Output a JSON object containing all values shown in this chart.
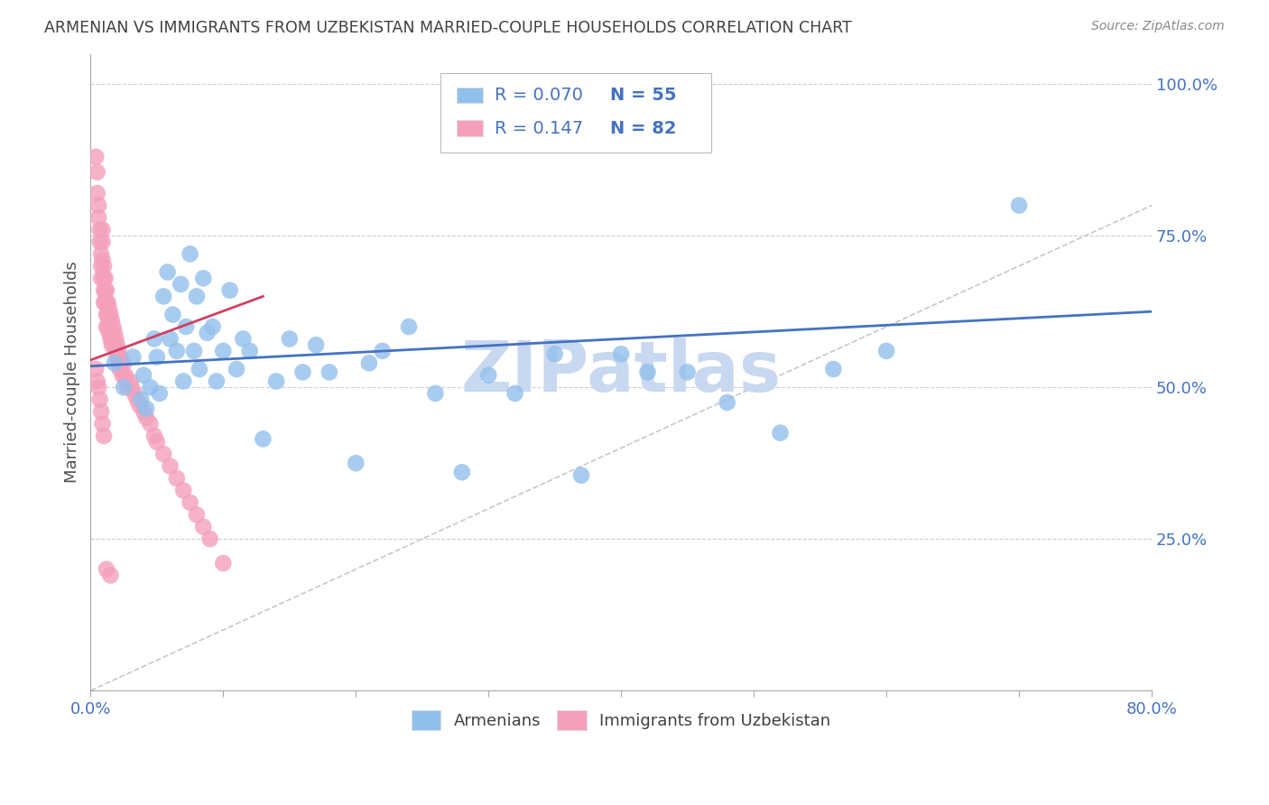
{
  "title": "ARMENIAN VS IMMIGRANTS FROM UZBEKISTAN MARRIED-COUPLE HOUSEHOLDS CORRELATION CHART",
  "source": "Source: ZipAtlas.com",
  "ylabel": "Married-couple Households",
  "xlim": [
    0.0,
    0.8
  ],
  "ylim": [
    0.0,
    1.05
  ],
  "armenian_R": 0.07,
  "armenian_N": 55,
  "uzbekistan_R": 0.147,
  "uzbekistan_N": 82,
  "armenian_color": "#92C0EC",
  "uzbekistan_color": "#F4A0BB",
  "trendline_armenian_color": "#4472C4",
  "trendline_uzbekistan_color": "#D04060",
  "diagonal_color": "#C8C8C8",
  "grid_color": "#CCCCCC",
  "title_color": "#404040",
  "tick_color": "#4472C4",
  "source_color": "#888888",
  "watermark": "ZIPatlas",
  "watermark_color": "#C8D8F0",
  "armenian_x": [
    0.018,
    0.025,
    0.032,
    0.038,
    0.04,
    0.042,
    0.045,
    0.048,
    0.05,
    0.052,
    0.055,
    0.058,
    0.06,
    0.062,
    0.065,
    0.068,
    0.07,
    0.072,
    0.075,
    0.078,
    0.08,
    0.082,
    0.085,
    0.088,
    0.092,
    0.095,
    0.1,
    0.105,
    0.11,
    0.115,
    0.12,
    0.13,
    0.14,
    0.15,
    0.16,
    0.17,
    0.18,
    0.2,
    0.21,
    0.22,
    0.24,
    0.26,
    0.28,
    0.3,
    0.32,
    0.35,
    0.37,
    0.4,
    0.42,
    0.45,
    0.48,
    0.52,
    0.56,
    0.6,
    0.7
  ],
  "armenian_y": [
    0.54,
    0.5,
    0.55,
    0.48,
    0.52,
    0.465,
    0.5,
    0.58,
    0.55,
    0.49,
    0.65,
    0.69,
    0.58,
    0.62,
    0.56,
    0.67,
    0.51,
    0.6,
    0.72,
    0.56,
    0.65,
    0.53,
    0.68,
    0.59,
    0.6,
    0.51,
    0.56,
    0.66,
    0.53,
    0.58,
    0.56,
    0.415,
    0.51,
    0.58,
    0.525,
    0.57,
    0.525,
    0.375,
    0.54,
    0.56,
    0.6,
    0.49,
    0.36,
    0.52,
    0.49,
    0.555,
    0.355,
    0.555,
    0.525,
    0.525,
    0.475,
    0.425,
    0.53,
    0.56,
    0.8
  ],
  "uzbekistan_x": [
    0.004,
    0.005,
    0.005,
    0.006,
    0.006,
    0.007,
    0.007,
    0.008,
    0.008,
    0.008,
    0.009,
    0.009,
    0.009,
    0.01,
    0.01,
    0.01,
    0.01,
    0.011,
    0.011,
    0.011,
    0.012,
    0.012,
    0.012,
    0.012,
    0.013,
    0.013,
    0.013,
    0.014,
    0.014,
    0.014,
    0.015,
    0.015,
    0.015,
    0.016,
    0.016,
    0.016,
    0.017,
    0.017,
    0.018,
    0.018,
    0.019,
    0.019,
    0.02,
    0.02,
    0.021,
    0.021,
    0.022,
    0.022,
    0.023,
    0.024,
    0.025,
    0.026,
    0.027,
    0.028,
    0.03,
    0.031,
    0.033,
    0.035,
    0.037,
    0.04,
    0.042,
    0.045,
    0.048,
    0.05,
    0.055,
    0.06,
    0.065,
    0.07,
    0.075,
    0.08,
    0.085,
    0.09,
    0.1,
    0.004,
    0.005,
    0.006,
    0.007,
    0.008,
    0.009,
    0.01,
    0.012,
    0.015
  ],
  "uzbekistan_y": [
    0.88,
    0.855,
    0.82,
    0.8,
    0.78,
    0.76,
    0.74,
    0.72,
    0.7,
    0.68,
    0.76,
    0.74,
    0.71,
    0.7,
    0.68,
    0.66,
    0.64,
    0.68,
    0.66,
    0.64,
    0.66,
    0.64,
    0.62,
    0.6,
    0.64,
    0.62,
    0.6,
    0.63,
    0.61,
    0.59,
    0.62,
    0.6,
    0.58,
    0.61,
    0.59,
    0.57,
    0.6,
    0.58,
    0.59,
    0.57,
    0.58,
    0.56,
    0.57,
    0.55,
    0.56,
    0.54,
    0.55,
    0.53,
    0.54,
    0.52,
    0.54,
    0.52,
    0.51,
    0.5,
    0.51,
    0.5,
    0.49,
    0.48,
    0.47,
    0.46,
    0.45,
    0.44,
    0.42,
    0.41,
    0.39,
    0.37,
    0.35,
    0.33,
    0.31,
    0.29,
    0.27,
    0.25,
    0.21,
    0.53,
    0.51,
    0.5,
    0.48,
    0.46,
    0.44,
    0.42,
    0.2,
    0.19
  ]
}
